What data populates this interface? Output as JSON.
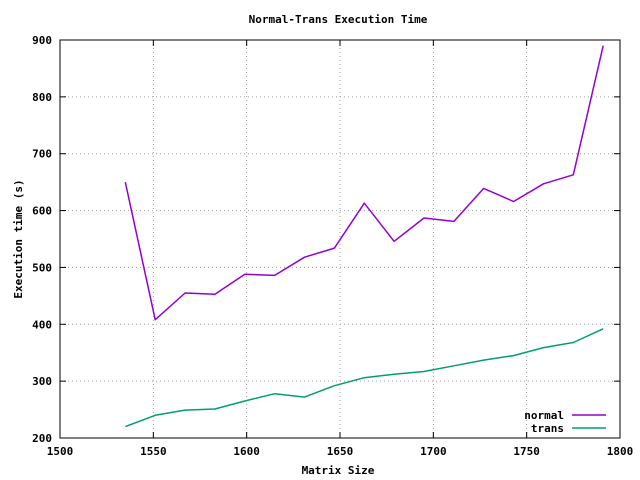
{
  "chart_data": {
    "type": "line",
    "title": "Normal-Trans Execution Time",
    "xlabel": "Matrix Size",
    "ylabel": "Execution time (s)",
    "xlim": [
      1500,
      1800
    ],
    "ylim": [
      200,
      900
    ],
    "xticks": [
      1500,
      1550,
      1600,
      1650,
      1700,
      1750,
      1800
    ],
    "yticks": [
      200,
      300,
      400,
      500,
      600,
      700,
      800,
      900
    ],
    "grid": true,
    "legend_position": "bottom-right",
    "series": [
      {
        "name": "normal",
        "color": "#9400d3",
        "x": [
          1535,
          1551,
          1567,
          1583,
          1599,
          1615,
          1631,
          1647,
          1663,
          1679,
          1695,
          1711,
          1727,
          1743,
          1759,
          1775,
          1791
        ],
        "y": [
          650,
          408,
          455,
          453,
          488,
          486,
          518,
          534,
          613,
          546,
          587,
          581,
          639,
          616,
          647,
          663,
          890
        ]
      },
      {
        "name": "trans",
        "color": "#009e73",
        "x": [
          1535,
          1551,
          1567,
          1583,
          1599,
          1615,
          1631,
          1647,
          1663,
          1679,
          1695,
          1711,
          1727,
          1743,
          1759,
          1775,
          1791
        ],
        "y": [
          220,
          240,
          249,
          251,
          265,
          278,
          272,
          292,
          306,
          312,
          317,
          327,
          337,
          345,
          359,
          368,
          392
        ]
      }
    ]
  }
}
